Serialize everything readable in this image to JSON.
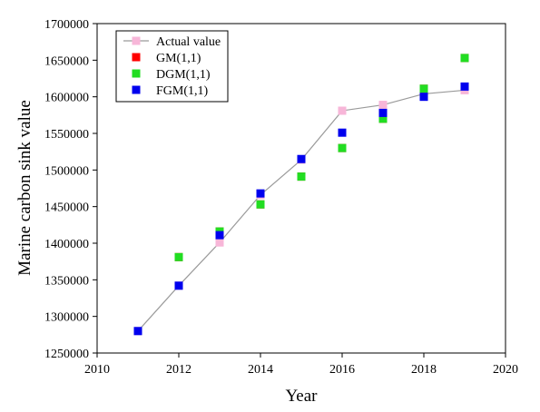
{
  "chart_data": {
    "type": "scatter",
    "xlabel": "Year",
    "ylabel": "Marine carbon sink value",
    "xlim": [
      2010,
      2020
    ],
    "ylim": [
      1250000,
      1700000
    ],
    "x_ticks": [
      2010,
      2012,
      2014,
      2016,
      2018,
      2020
    ],
    "y_ticks": [
      1250000,
      1300000,
      1350000,
      1400000,
      1450000,
      1500000,
      1550000,
      1600000,
      1650000,
      1700000
    ],
    "x_tick_labels": [
      "2010",
      "2012",
      "2014",
      "2016",
      "2018",
      "2020"
    ],
    "y_tick_labels": [
      "1250000",
      "1300000",
      "1350000",
      "1400000",
      "1450000",
      "1500000",
      "1550000",
      "1600000",
      "1650000",
      "1700000"
    ],
    "grid": false,
    "legend_position": "top-left",
    "series": [
      {
        "name": "Actual value",
        "style": "line-marker",
        "color": "#f7b6d8",
        "line_color": "#9a9a9a",
        "x": [
          2011,
          2012,
          2013,
          2014,
          2015,
          2016,
          2017,
          2018,
          2019
        ],
        "y": [
          1280000,
          1342000,
          1401000,
          1466000,
          1514000,
          1581000,
          1589000,
          1604000,
          1609000
        ]
      },
      {
        "name": "GM(1,1)",
        "style": "marker",
        "color": "#ff0000",
        "x": [
          2012,
          2013,
          2014,
          2015,
          2016,
          2017,
          2018,
          2019
        ],
        "y": [
          1381000,
          1416000,
          1453000,
          1491000,
          1530000,
          1570000,
          1611000,
          1653000
        ]
      },
      {
        "name": "DGM(1,1)",
        "style": "marker",
        "color": "#22dd22",
        "x": [
          2012,
          2013,
          2014,
          2015,
          2016,
          2017,
          2018,
          2019
        ],
        "y": [
          1381000,
          1416000,
          1453000,
          1491000,
          1530000,
          1570000,
          1611000,
          1653000
        ]
      },
      {
        "name": "FGM(1,1)",
        "style": "marker",
        "color": "#0000ee",
        "x": [
          2011,
          2012,
          2013,
          2014,
          2015,
          2016,
          2017,
          2018,
          2019
        ],
        "y": [
          1280000,
          1342000,
          1411000,
          1468000,
          1515000,
          1551000,
          1578000,
          1600000,
          1614000
        ]
      }
    ]
  }
}
